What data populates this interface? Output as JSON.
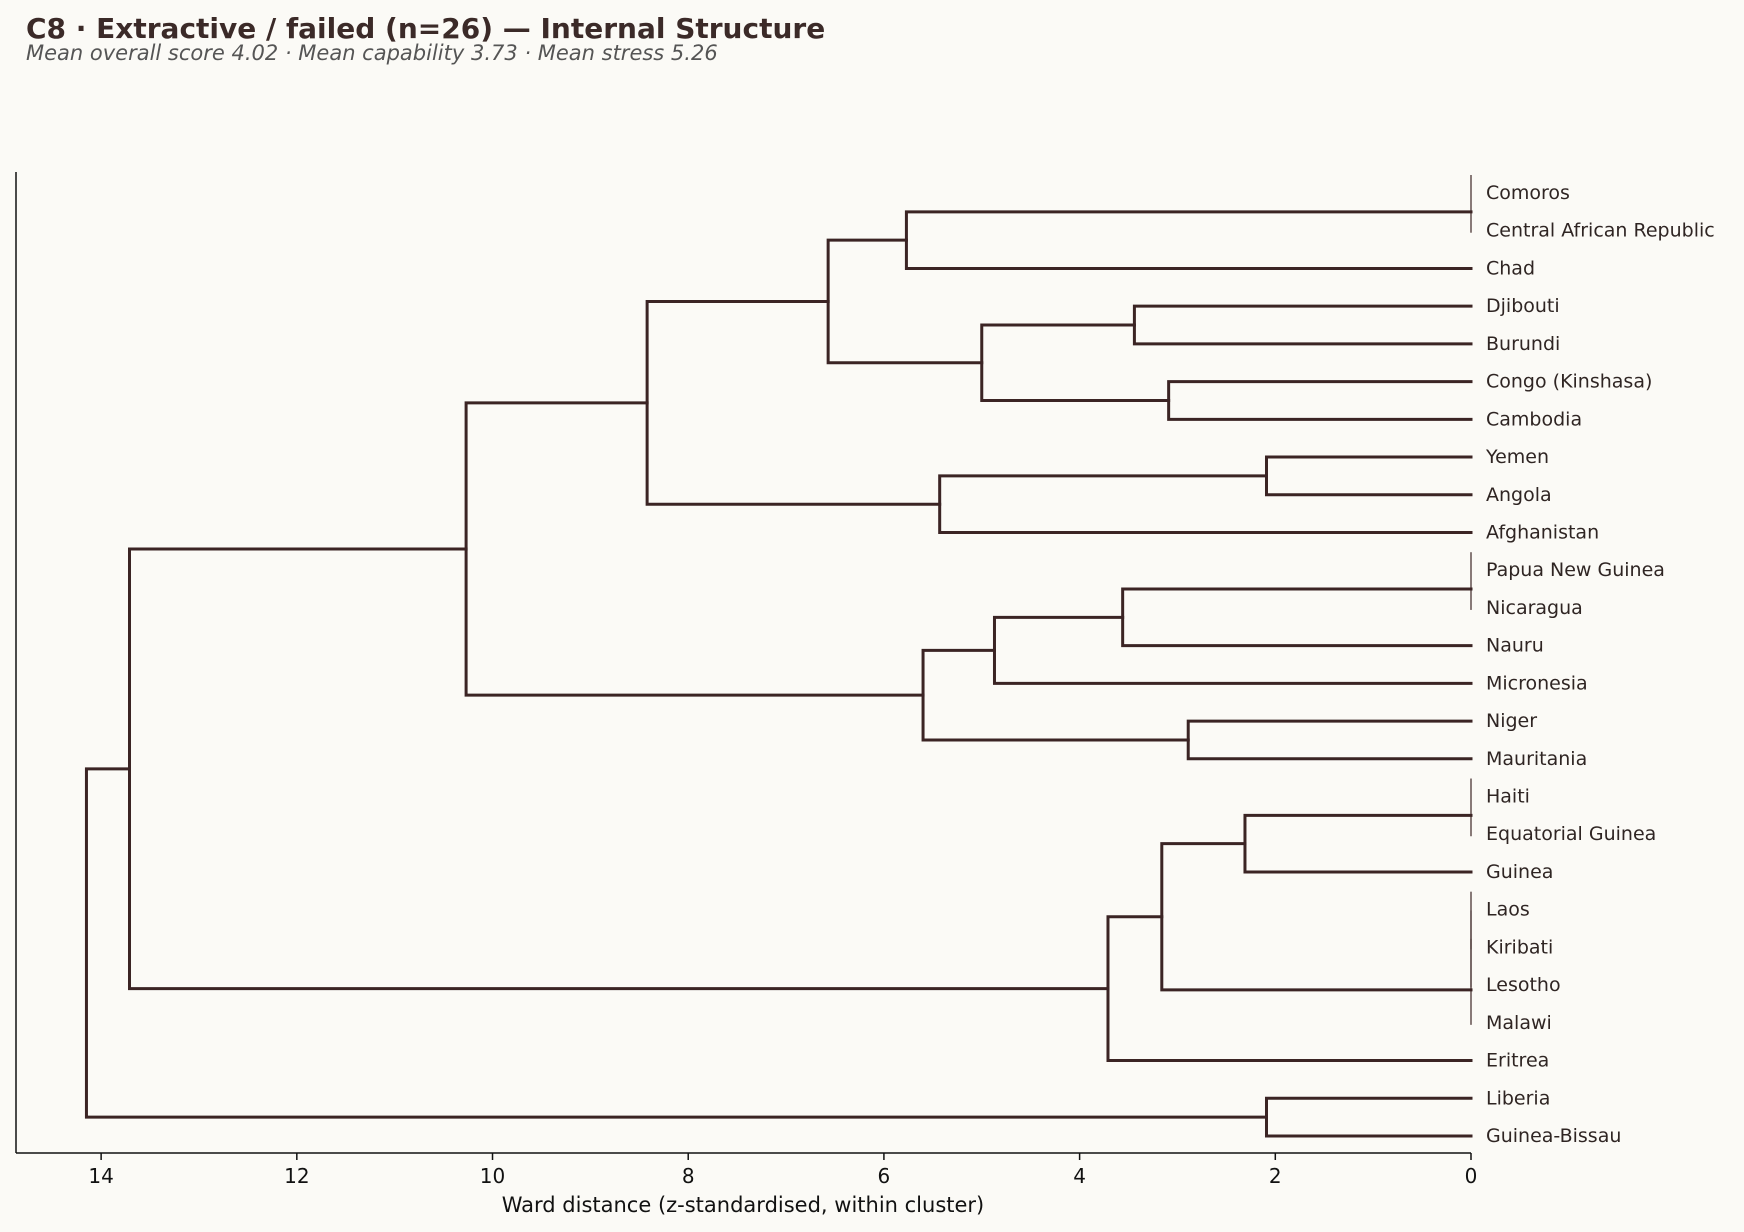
{
  "title": "C8 · Extractive / failed (n=26) — Internal Structure",
  "subtitle": "Mean overall score 4.02  ·  Mean capability 3.73  ·  Mean stress 5.26",
  "colors": {
    "link": "#3b2424",
    "background": "#fbfaf6",
    "text": "#3b2a28"
  },
  "chart_data": {
    "type": "dendrogram",
    "orientation": "left",
    "xlabel": "Ward distance (z-standardised, within cluster)",
    "xlim": [
      14.87,
      0
    ],
    "xticks": [
      14,
      12,
      10,
      8,
      6,
      4,
      2,
      0
    ],
    "grid": false,
    "leaves": [
      "Comoros",
      "Central African Republic",
      "Chad",
      "Djibouti",
      "Burundi",
      "Congo (Kinshasa)",
      "Cambodia",
      "Yemen",
      "Angola",
      "Afghanistan",
      "Papua New Guinea",
      "Nicaragua",
      "Nauru",
      "Micronesia",
      "Niger",
      "Mauritania",
      "Haiti",
      "Equatorial Guinea",
      "Guinea",
      "Laos",
      "Kiribati",
      "Lesotho",
      "Malawi",
      "Eritrea",
      "Liberia",
      "Guinea-Bissau"
    ],
    "merges": [
      {
        "id": "m1",
        "a": "L0",
        "b": "L1",
        "distance": 0
      },
      {
        "id": "m2",
        "a": "m1",
        "b": "L2",
        "distance": 5.77
      },
      {
        "id": "m3",
        "a": "L3",
        "b": "L4",
        "distance": 3.44
      },
      {
        "id": "m4",
        "a": "L5",
        "b": "L6",
        "distance": 3.09
      },
      {
        "id": "m5",
        "a": "m3",
        "b": "m4",
        "distance": 5.0
      },
      {
        "id": "m6",
        "a": "m2",
        "b": "m5",
        "distance": 6.57
      },
      {
        "id": "m7",
        "a": "L7",
        "b": "L8",
        "distance": 2.09
      },
      {
        "id": "m8",
        "a": "m7",
        "b": "L9",
        "distance": 5.43
      },
      {
        "id": "m9",
        "a": "m6",
        "b": "m8",
        "distance": 8.42
      },
      {
        "id": "m10",
        "a": "L10",
        "b": "L11",
        "distance": 0
      },
      {
        "id": "m11",
        "a": "m10",
        "b": "L12",
        "distance": 3.56
      },
      {
        "id": "m12",
        "a": "m11",
        "b": "L13",
        "distance": 4.87
      },
      {
        "id": "m13",
        "a": "L14",
        "b": "L15",
        "distance": 2.89
      },
      {
        "id": "m14",
        "a": "m12",
        "b": "m13",
        "distance": 5.6
      },
      {
        "id": "m15",
        "a": "m9",
        "b": "m14",
        "distance": 10.27
      },
      {
        "id": "m16",
        "a": "L16",
        "b": "L17",
        "distance": 0
      },
      {
        "id": "m17",
        "a": "m16",
        "b": "L18",
        "distance": 2.31
      },
      {
        "id": "m18",
        "a": "L19",
        "b": "L20",
        "distance": 0
      },
      {
        "id": "m19",
        "a": "m18",
        "b": "L21",
        "distance": 0
      },
      {
        "id": "m20",
        "a": "m19",
        "b": "L22",
        "distance": 0
      },
      {
        "id": "m21",
        "a": "m17",
        "b": "m20",
        "distance": 3.16
      },
      {
        "id": "m22",
        "a": "m21",
        "b": "L23",
        "distance": 3.71
      },
      {
        "id": "m23",
        "a": "m15",
        "b": "m22",
        "distance": 13.71
      },
      {
        "id": "m24",
        "a": "L24",
        "b": "L25",
        "distance": 2.09
      },
      {
        "id": "m25",
        "a": "m23",
        "b": "m24",
        "distance": 14.15
      }
    ]
  }
}
